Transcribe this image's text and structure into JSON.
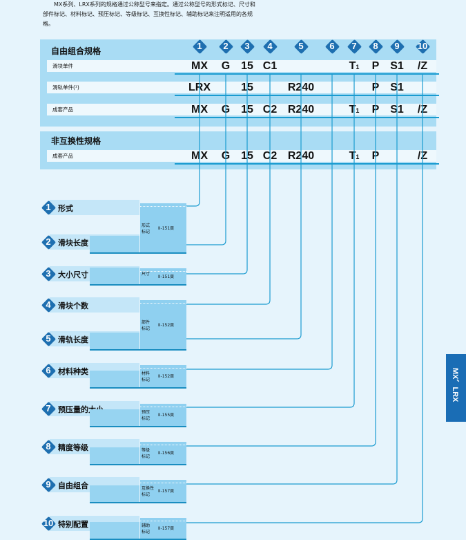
{
  "intro": "MX系列、LRX系列的规格通过公称型号来指定。通过公称型号的形式标记、尺寸和部件标记、材料标记、预压标记、等级标记、互换性标记、辅助标记来注明适用的各规格。",
  "section1": {
    "title": "自由组合规格",
    "rows": [
      {
        "label": "滑块单件",
        "codes": [
          "MX",
          "G",
          "15",
          "C1",
          "",
          "",
          "T1",
          "P",
          "S1",
          "/Z"
        ]
      },
      {
        "label": "滑轨单件(¹)",
        "codes": [
          "LRX",
          "",
          "15",
          "",
          "R240",
          "",
          "",
          "P",
          "S1",
          ""
        ]
      },
      {
        "label": "成套产品",
        "codes": [
          "MX",
          "G",
          "15",
          "C2",
          "R240",
          "",
          "T1",
          "P",
          "S1",
          "/Z"
        ]
      }
    ]
  },
  "section2": {
    "title": "非互换性规格",
    "rows": [
      {
        "label": "成套产品",
        "codes": [
          "MX",
          "G",
          "15",
          "C2",
          "R240",
          "",
          "T1",
          "P",
          "",
          "/Z"
        ]
      }
    ]
  },
  "numbers": [
    "1",
    "2",
    "3",
    "4",
    "5",
    "6",
    "7",
    "8",
    "9",
    "10"
  ],
  "items": [
    {
      "num": "1",
      "label": "形式"
    },
    {
      "num": "2",
      "label": "滑块长度"
    },
    {
      "num": "3",
      "label": "大小尺寸"
    },
    {
      "num": "4",
      "label": "滑块个数"
    },
    {
      "num": "5",
      "label": "滑轨长度"
    },
    {
      "num": "6",
      "label": "材料种类"
    },
    {
      "num": "7",
      "label": "预压量的大小"
    },
    {
      "num": "8",
      "label": "精度等级"
    },
    {
      "num": "9",
      "label": "自由组合"
    },
    {
      "num": "10",
      "label": "特别配置"
    }
  ],
  "refs": [
    {
      "mark": "形式\n标记",
      "page": "II-151頁"
    },
    {
      "mark": "尺寸",
      "page": "II-151頁"
    },
    {
      "mark": "部件\n标记",
      "page": "II-152頁"
    },
    {
      "mark": "材料\n标记",
      "page": "II-152頁"
    },
    {
      "mark": "预压\n标记",
      "page": "II-155頁"
    },
    {
      "mark": "等级\n标记",
      "page": "II-156頁"
    },
    {
      "mark": "互换性\n标记",
      "page": "II-157頁"
    },
    {
      "mark": "辅助\n标记",
      "page": "II-157頁"
    }
  ],
  "side_tab": "MX、LRX",
  "colors": {
    "accent": "#1e6fb0",
    "line": "#1a9bd0",
    "panel": "#a9dcf4",
    "background": "#e6f4fc"
  }
}
